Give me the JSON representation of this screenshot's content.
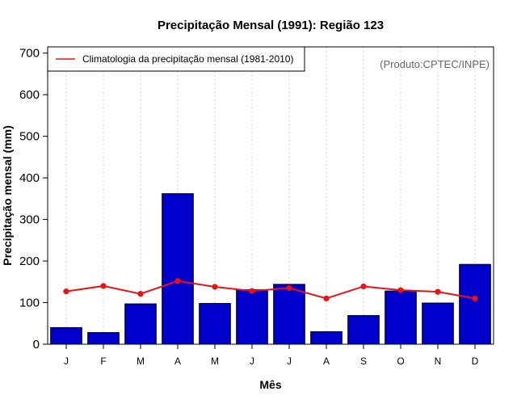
{
  "chart_data": {
    "type": "bar",
    "title": "Precipitação Mensal (1991): Região 123",
    "xlabel": "Mês",
    "ylabel": "Precipitação mensal (mm)",
    "categories": [
      "J",
      "F",
      "M",
      "A",
      "M",
      "J",
      "J",
      "A",
      "S",
      "O",
      "N",
      "D"
    ],
    "series": [
      {
        "name": "Precipitação mensal (1991)",
        "type": "bar",
        "color": "#0000CC",
        "values": [
          40,
          28,
          97,
          362,
          98,
          131,
          144,
          30,
          69,
          128,
          99,
          192
        ]
      },
      {
        "name": "Climatologia da precipitação mensal (1981-2010)",
        "type": "line",
        "color": "#EE1111",
        "values": [
          127,
          140,
          121,
          152,
          138,
          128,
          135,
          110,
          139,
          130,
          126,
          110
        ]
      }
    ],
    "ylim": [
      0,
      700
    ],
    "yticks": [
      0,
      100,
      200,
      300,
      400,
      500,
      600,
      700
    ],
    "ylim_view": [
      0,
      715
    ],
    "grid": "vertical-dotted",
    "legend": {
      "position": "top-left",
      "entries": [
        "Climatologia da precipitação mensal (1981-2010)"
      ]
    },
    "annotation": "(Produto:CPTEC/INPE)"
  }
}
